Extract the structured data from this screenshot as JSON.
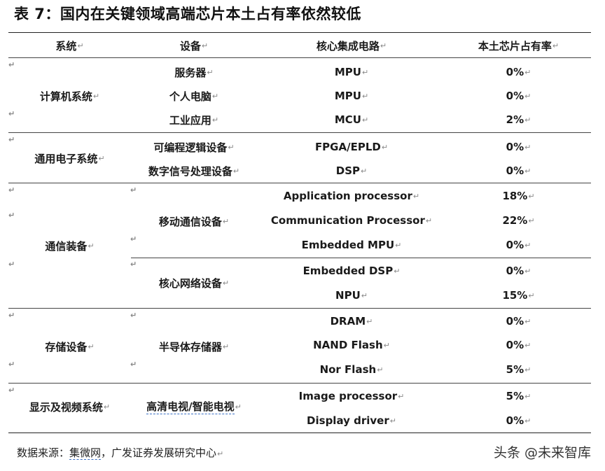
{
  "title": "表 7：国内在关键领域高端芯片本土占有率依然较低",
  "header": [
    "系统",
    "设备",
    "核心集成电路",
    "本土芯片占有率"
  ],
  "groups": [
    {
      "system": "计算机系统",
      "devices": [
        {
          "device": "服务器",
          "chip": "MPU",
          "share": "0%"
        },
        {
          "device": "个人电脑",
          "chip": "MPU",
          "share": "0%"
        },
        {
          "device": "工业应用",
          "chip": "MCU",
          "share": "2%"
        }
      ]
    },
    {
      "system": "通用电子系统",
      "devices": [
        {
          "device": "可编程逻辑设备",
          "chip": "FPGA/EPLD",
          "share": "0%"
        },
        {
          "device": "数字信号处理设备",
          "chip": "DSP",
          "share": "0%"
        }
      ]
    },
    {
      "system": "通信装备",
      "subgroups": [
        {
          "device": "移动通信设备",
          "items": [
            {
              "chip": "Application processor",
              "share": "18%"
            },
            {
              "chip": "Communication Processor",
              "share": "22%"
            },
            {
              "chip": "Embedded MPU",
              "share": "0%"
            }
          ]
        },
        {
          "device": "核心网络设备",
          "items": [
            {
              "chip": "Embedded DSP",
              "share": "0%"
            },
            {
              "chip": "NPU",
              "share": "15%"
            }
          ]
        }
      ]
    },
    {
      "system": "存储设备",
      "device": "半导体存储器",
      "items": [
        {
          "chip": "DRAM",
          "share": "0%"
        },
        {
          "chip": "NAND Flash",
          "share": "0%"
        },
        {
          "chip": "Nor Flash",
          "share": "5%"
        }
      ]
    },
    {
      "system": "显示及视频系统",
      "device": "高清电视/智能电视",
      "items": [
        {
          "chip": "Image processor",
          "share": "5%"
        },
        {
          "chip": "Display driver",
          "share": "0%"
        }
      ]
    }
  ],
  "source": {
    "prefix": "数据来源：",
    "underlined": "集微网",
    "rest": "，广发证券发展研究中心"
  },
  "watermark": "头条 @未来智库",
  "paragraph_mark": "↵"
}
